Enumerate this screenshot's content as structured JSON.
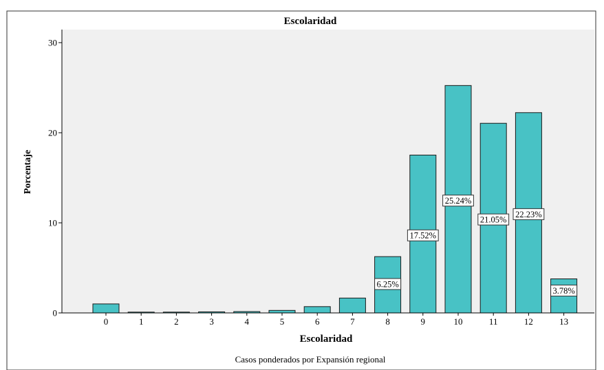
{
  "chart_data": {
    "type": "bar",
    "title": "Escolaridad",
    "xlabel": "Escolaridad",
    "ylabel": "Porcentaje",
    "footnote": "Casos ponderados por Expansión regional",
    "categories": [
      "0",
      "1",
      "2",
      "3",
      "4",
      "5",
      "6",
      "7",
      "8",
      "9",
      "10",
      "11",
      "12",
      "13"
    ],
    "values": [
      1.0,
      0.05,
      0.08,
      0.12,
      0.15,
      0.28,
      0.7,
      1.65,
      6.25,
      17.52,
      25.24,
      21.05,
      22.23,
      3.78
    ],
    "data_labels": [
      "",
      "",
      "",
      "",
      "",
      "",
      "",
      "",
      "6.25%",
      "17.52%",
      "25.24%",
      "21.05%",
      "22.23%",
      "3.78%"
    ],
    "yticks": [
      0,
      10,
      20,
      30
    ],
    "ylim": [
      0,
      31.5
    ],
    "grid": false,
    "colors": {
      "bar_fill": "#48c2c5",
      "bar_stroke": "#1a1a1a",
      "plot_background": "#f0f0f0"
    }
  }
}
